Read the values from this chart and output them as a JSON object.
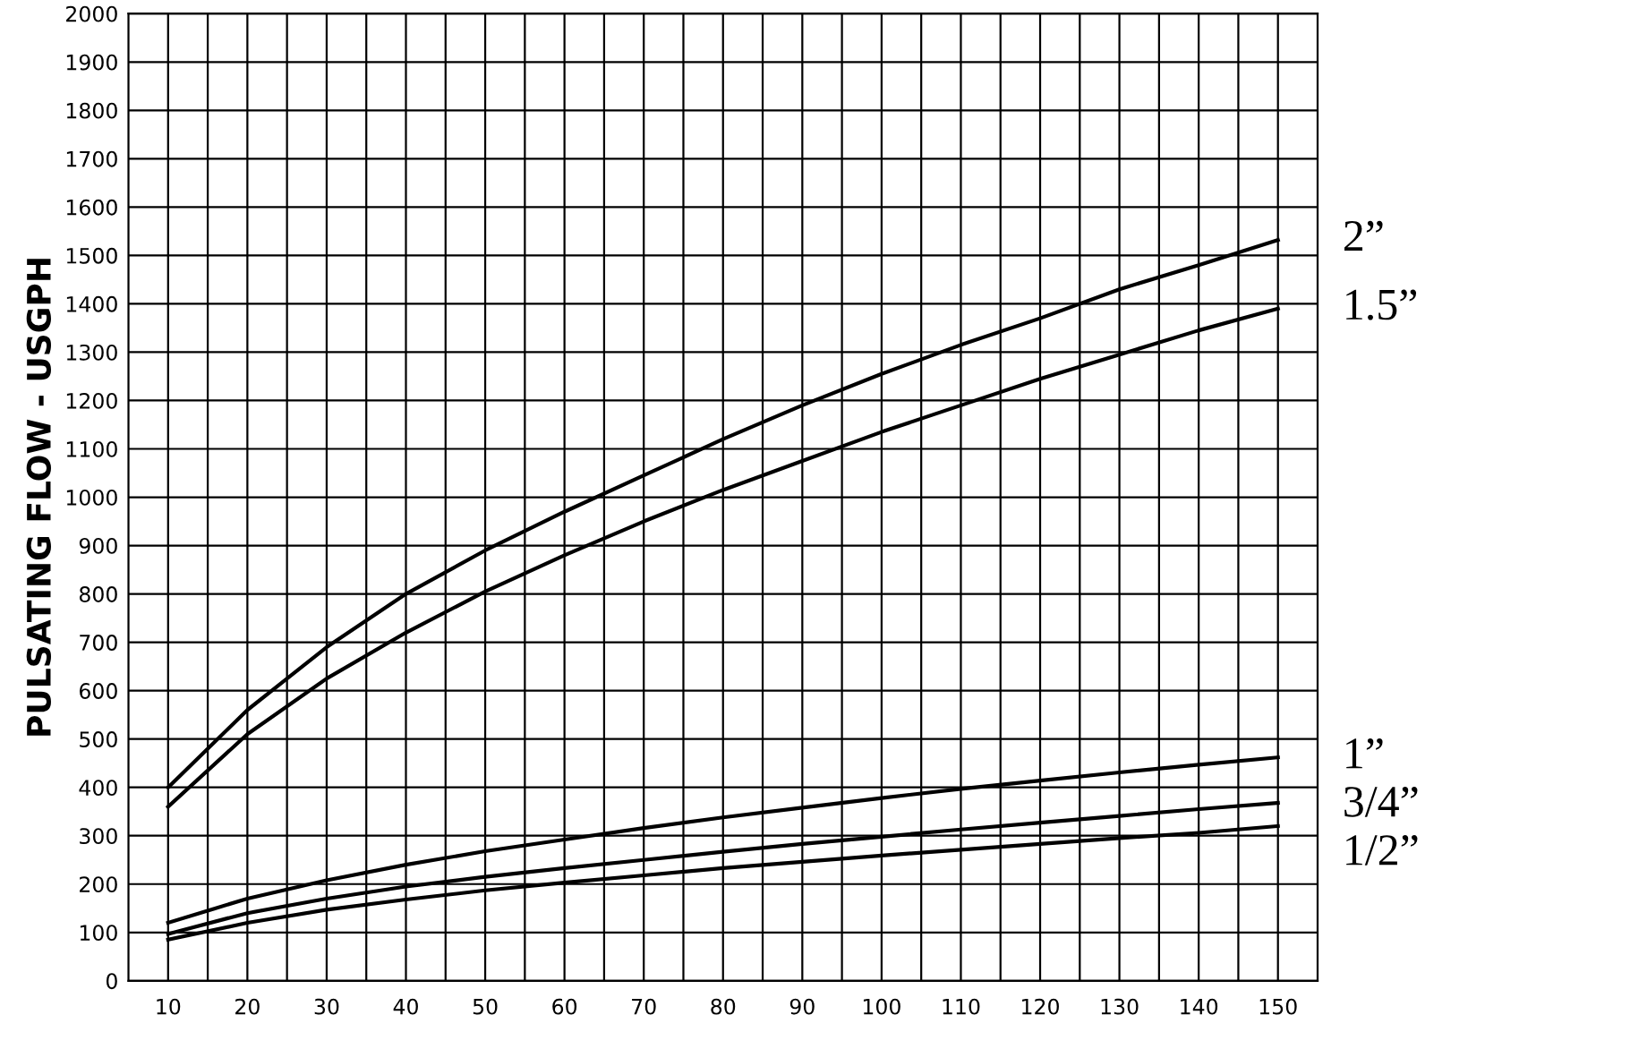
{
  "chart_data": {
    "type": "line",
    "ylabel": "PULSATING FLOW - USGPH",
    "x": [
      10,
      20,
      30,
      40,
      50,
      60,
      70,
      80,
      90,
      100,
      110,
      120,
      130,
      140,
      150
    ],
    "series": [
      {
        "name": "2”",
        "color": "#000000",
        "values": [
          400,
          560,
          690,
          800,
          890,
          970,
          1045,
          1120,
          1190,
          1255,
          1315,
          1370,
          1430,
          1480,
          1532
        ]
      },
      {
        "name": "1.5”",
        "color": "#000000",
        "values": [
          360,
          510,
          625,
          720,
          805,
          880,
          950,
          1015,
          1075,
          1135,
          1190,
          1245,
          1295,
          1345,
          1390
        ]
      },
      {
        "name": "1”",
        "color": "#000000",
        "values": [
          120,
          170,
          208,
          240,
          268,
          292,
          316,
          338,
          358,
          378,
          397,
          414,
          431,
          447,
          462
        ]
      },
      {
        "name": "3/4”",
        "color": "#000000",
        "values": [
          97,
          140,
          170,
          195,
          215,
          233,
          250,
          267,
          283,
          298,
          313,
          327,
          341,
          355,
          368
        ]
      },
      {
        "name": "1/2”",
        "color": "#000000",
        "values": [
          85,
          120,
          147,
          168,
          187,
          203,
          218,
          233,
          246,
          259,
          271,
          283,
          295,
          306,
          320
        ]
      }
    ],
    "xlim": [
      5,
      155
    ],
    "xticks": [
      10,
      {
        "value": 15,
        "label": null
      },
      20,
      {
        "value": 25,
        "label": null
      },
      30,
      {
        "value": 35,
        "label": null
      },
      40,
      {
        "value": 45,
        "label": null
      },
      50,
      {
        "value": 55,
        "label": null
      },
      60,
      {
        "value": 65,
        "label": null
      },
      70,
      {
        "value": 75,
        "label": null
      },
      80,
      {
        "value": 85,
        "label": null
      },
      90,
      {
        "value": 95,
        "label": null
      },
      100,
      {
        "value": 105,
        "label": null
      },
      110,
      {
        "value": 115,
        "label": null
      },
      120,
      {
        "value": 125,
        "label": null
      },
      130,
      {
        "value": 135,
        "label": null
      },
      140,
      {
        "value": 145,
        "label": null
      },
      150
    ],
    "ylim": [
      0,
      2000
    ],
    "yticks": [
      0,
      100,
      200,
      300,
      400,
      500,
      600,
      700,
      800,
      900,
      1000,
      1100,
      1200,
      1300,
      1400,
      1500,
      1600,
      1700,
      1800,
      1900,
      2000
    ],
    "grid": true,
    "legend": false,
    "marker": "none",
    "line_style": "solid"
  }
}
